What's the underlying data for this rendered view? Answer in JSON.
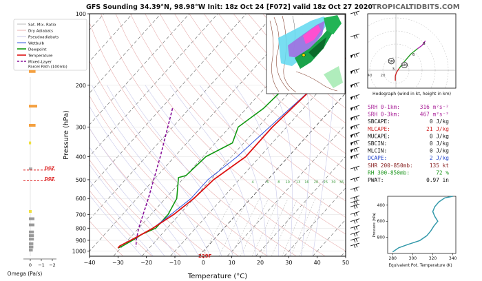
{
  "header": {
    "title": "GFS Sounding 34.39°N, 98.98°W Init: 18z Oct 24 [F072] valid 18z Oct 27 2020",
    "brand": "TROPICALTIDBITS.COM"
  },
  "legend": [
    {
      "label": "Sat. Mix. Ratio",
      "color": "#bbbbbb",
      "style": "solid"
    },
    {
      "label": "Dry Adiabats",
      "color": "#e8b0b0",
      "style": "solid"
    },
    {
      "label": "Pseudoadiabats",
      "color": "#c8c8ea",
      "style": "solid"
    },
    {
      "label": "Wetbulb",
      "color": "#3355dd",
      "style": "solid"
    },
    {
      "label": "Dewpoint",
      "color": "#119911",
      "style": "solid"
    },
    {
      "label": "Temperature",
      "color": "#dd1111",
      "style": "solid"
    },
    {
      "label": "Mixed-Layer\nParcel Path (100mb)",
      "color": "#881199",
      "style": "dashed"
    }
  ],
  "omega": {
    "xlabel": "Omega (Pa/s)",
    "ticks": [
      "0",
      "−1",
      "−2"
    ],
    "dgz_label": "DGZ",
    "bars": [
      {
        "p": 175,
        "v": 0.6,
        "color": "#f4a040"
      },
      {
        "p": 245,
        "v": 0.75,
        "color": "#f4a040"
      },
      {
        "p": 295,
        "v": 0.6,
        "color": "#f4a040"
      },
      {
        "p": 350,
        "v": 0.2,
        "color": "#f0e040"
      },
      {
        "p": 450,
        "v": 0.3,
        "color": "#aaaaaa"
      },
      {
        "p": 680,
        "v": 0.25,
        "color": "#f0e040"
      },
      {
        "p": 730,
        "v": 0.5,
        "color": "#999999"
      },
      {
        "p": 775,
        "v": 0.5,
        "color": "#999999"
      },
      {
        "p": 830,
        "v": 0.45,
        "color": "#999999"
      },
      {
        "p": 860,
        "v": 0.45,
        "color": "#999999"
      },
      {
        "p": 890,
        "v": 0.45,
        "color": "#999999"
      },
      {
        "p": 930,
        "v": 0.4,
        "color": "#999999"
      },
      {
        "p": 960,
        "v": 0.4,
        "color": "#999999"
      },
      {
        "p": 990,
        "v": 0.35,
        "color": "#999999"
      }
    ],
    "dgz_pressures": [
      455,
      505
    ]
  },
  "chart_data": {
    "type": "line",
    "title": "GFS Sounding 34.39°N, 98.98°W Init: 18z Oct 24 [F072] valid 18z Oct 27 2020",
    "xlabel": "Temperature (°C)",
    "ylabel": "Pressure (hPa)",
    "xlim": [
      -40,
      50
    ],
    "ylim": [
      1050,
      100
    ],
    "yscale": "log",
    "x_ticks": [
      -40,
      -30,
      -20,
      -10,
      0,
      10,
      20,
      30,
      40,
      50
    ],
    "y_ticks": [
      100,
      200,
      300,
      400,
      500,
      600,
      700,
      800,
      900,
      1000
    ],
    "mix_ratio_labels": [
      "4",
      "6",
      "8",
      "10",
      "13",
      "16",
      "20",
      "25",
      "30",
      "36"
    ],
    "surface_temp_label": "229F",
    "series": [
      {
        "name": "Temperature",
        "color": "#dd1111",
        "points": [
          [
            -8,
            100
          ],
          [
            -13,
            200
          ],
          [
            -15,
            300
          ],
          [
            -15,
            400
          ],
          [
            -19,
            500
          ],
          [
            -20,
            600
          ],
          [
            -22,
            700
          ],
          [
            -25,
            800
          ],
          [
            -27,
            850
          ],
          [
            -29,
            900
          ],
          [
            -30,
            925
          ],
          [
            -31,
            950
          ],
          [
            -31,
            970
          ]
        ]
      },
      {
        "name": "Dewpoint",
        "color": "#119911",
        "points": [
          [
            -37,
            100
          ],
          [
            -28,
            150
          ],
          [
            -23,
            200
          ],
          [
            -24,
            250
          ],
          [
            -27,
            300
          ],
          [
            -24,
            350
          ],
          [
            -29,
            400
          ],
          [
            -30,
            480
          ],
          [
            -32,
            490
          ],
          [
            -26,
            600
          ],
          [
            -24,
            700
          ],
          [
            -24,
            800
          ],
          [
            -27,
            850
          ],
          [
            -28,
            890
          ],
          [
            -29,
            920
          ],
          [
            -30,
            950
          ],
          [
            -31,
            970
          ]
        ]
      },
      {
        "name": "Wetbulb",
        "color": "#3355dd",
        "points": [
          [
            -13,
            200
          ],
          [
            -16,
            300
          ],
          [
            -18,
            400
          ],
          [
            -21,
            500
          ],
          [
            -21,
            600
          ],
          [
            -23,
            700
          ],
          [
            -25,
            800
          ],
          [
            -27,
            850
          ],
          [
            -29,
            900
          ],
          [
            -30,
            925
          ],
          [
            -31,
            950
          ]
        ]
      },
      {
        "name": "Mixed-Layer Parcel Path (100mb)",
        "color": "#881199",
        "points": [
          [
            -56,
            250
          ],
          [
            -45,
            400
          ],
          [
            -36,
            600
          ],
          [
            -30,
            800
          ],
          [
            -27,
            900
          ],
          [
            -25,
            960
          ]
        ]
      }
    ]
  },
  "hodograph": {
    "xlabel": "Hodograph (wind in kt, height in km)",
    "ring_labels": [
      "20",
      "40",
      "60"
    ],
    "markers": [
      "SM",
      "BM"
    ],
    "height_labels": [
      "9",
      "6",
      "3"
    ],
    "path": [
      [
        -1,
        16
      ],
      [
        -1,
        9
      ],
      [
        1,
        3
      ],
      [
        5,
        -3
      ],
      [
        11,
        -11
      ],
      [
        23,
        -25
      ],
      [
        33,
        -33
      ],
      [
        40,
        -38
      ],
      [
        45,
        -45
      ]
    ]
  },
  "indices": [
    {
      "label": "SRH 0-1km:",
      "value": "316 m²s⁻²",
      "color": "#aa2299"
    },
    {
      "label": "SRH 0-3km:",
      "value": "467 m²s⁻²",
      "color": "#aa2299"
    },
    {
      "label": "SBCAPE:",
      "value": "0 J/kg",
      "color": "#111111"
    },
    {
      "label": "MLCAPE:",
      "value": "21 J/kg",
      "color": "#cc2222"
    },
    {
      "label": "MUCAPE:",
      "value": "0 J/kg",
      "color": "#111111"
    },
    {
      "label": "SBCIN:",
      "value": "0 J/kg",
      "color": "#111111"
    },
    {
      "label": "MLCIN:",
      "value": "0 J/kg",
      "color": "#111111"
    },
    {
      "label": "DCAPE:",
      "value": "2 J/kg",
      "color": "#2244cc"
    },
    {
      "label": "SHR 200-850mb:",
      "value": "135 kt",
      "color": "#882222"
    },
    {
      "label": "RH 300-850mb:",
      "value": "72 %",
      "color": "#229922"
    },
    {
      "label": "PWAT:",
      "value": "0.97 in",
      "color": "#111111"
    }
  ],
  "theta_e": {
    "xlabel": "Equivalent Pot. Temperature (K)",
    "ylabel": "Pressure (hPa)",
    "x_ticks": [
      280,
      300,
      320,
      340
    ],
    "y_ticks": [
      400,
      600,
      800
    ],
    "xlim": [
      275,
      343
    ],
    "ylim": [
      1000,
      290
    ],
    "color": "#3399aa",
    "points": [
      [
        340,
        290
      ],
      [
        332,
        310
      ],
      [
        326,
        360
      ],
      [
        322,
        420
      ],
      [
        320,
        480
      ],
      [
        322,
        540
      ],
      [
        325,
        600
      ],
      [
        321,
        660
      ],
      [
        318,
        720
      ],
      [
        314,
        780
      ],
      [
        307,
        840
      ],
      [
        295,
        890
      ],
      [
        286,
        930
      ],
      [
        280,
        980
      ]
    ]
  }
}
